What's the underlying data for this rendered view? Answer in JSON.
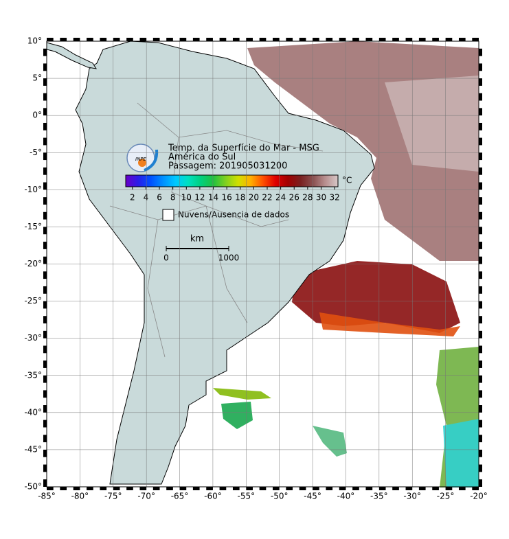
{
  "map": {
    "title": "Temp. da Superfície do Mar - MSG",
    "region": "América do Sul",
    "pass": "Passagem: 201905031200",
    "logo_text": "INPE",
    "xlim": [
      -85,
      -20
    ],
    "ylim": [
      -50,
      10
    ],
    "grid": true,
    "xticks": [
      {
        "value": -85,
        "label": "-85°"
      },
      {
        "value": -80,
        "label": "-80°"
      },
      {
        "value": -75,
        "label": "-75°"
      },
      {
        "value": -70,
        "label": "-70°"
      },
      {
        "value": -65,
        "label": "-65°"
      },
      {
        "value": -60,
        "label": "-60°"
      },
      {
        "value": -55,
        "label": "-55°"
      },
      {
        "value": -50,
        "label": "-50°"
      },
      {
        "value": -45,
        "label": "-45°"
      },
      {
        "value": -40,
        "label": "-40°"
      },
      {
        "value": -35,
        "label": "-35°"
      },
      {
        "value": -30,
        "label": "-30°"
      },
      {
        "value": -25,
        "label": "-25°"
      },
      {
        "value": -20,
        "label": "-20°"
      }
    ],
    "yticks": [
      {
        "value": 10,
        "label": "10°"
      },
      {
        "value": 5,
        "label": "5°"
      },
      {
        "value": 0,
        "label": "0°"
      },
      {
        "value": -5,
        "label": "-5°"
      },
      {
        "value": -10,
        "label": "-10°"
      },
      {
        "value": -15,
        "label": "-15°"
      },
      {
        "value": -20,
        "label": "-20°"
      },
      {
        "value": -25,
        "label": "-25°"
      },
      {
        "value": -30,
        "label": "-30°"
      },
      {
        "value": -35,
        "label": "-35°"
      },
      {
        "value": -40,
        "label": "-40°"
      },
      {
        "value": -45,
        "label": "-45°"
      },
      {
        "value": -50,
        "label": "-50°"
      }
    ],
    "colorbar": {
      "unit": "°C",
      "range": [
        1,
        32.5
      ],
      "ticks": [
        2,
        4,
        6,
        8,
        10,
        12,
        14,
        16,
        18,
        20,
        22,
        24,
        26,
        28,
        30,
        32
      ],
      "colors": [
        "#6a00c8",
        "#2a1ee8",
        "#0050ff",
        "#0090ff",
        "#00c8ff",
        "#00e0c0",
        "#00d080",
        "#20c040",
        "#80d020",
        "#d0e000",
        "#ffb000",
        "#ff5000",
        "#e00000",
        "#a00000",
        "#7a2020",
        "#8a5050",
        "#b89090",
        "#d8c8c8"
      ]
    },
    "legend": "Nuvens/Ausencia de dados",
    "scale": {
      "unit": "km",
      "start": "0",
      "end": "1000"
    }
  }
}
